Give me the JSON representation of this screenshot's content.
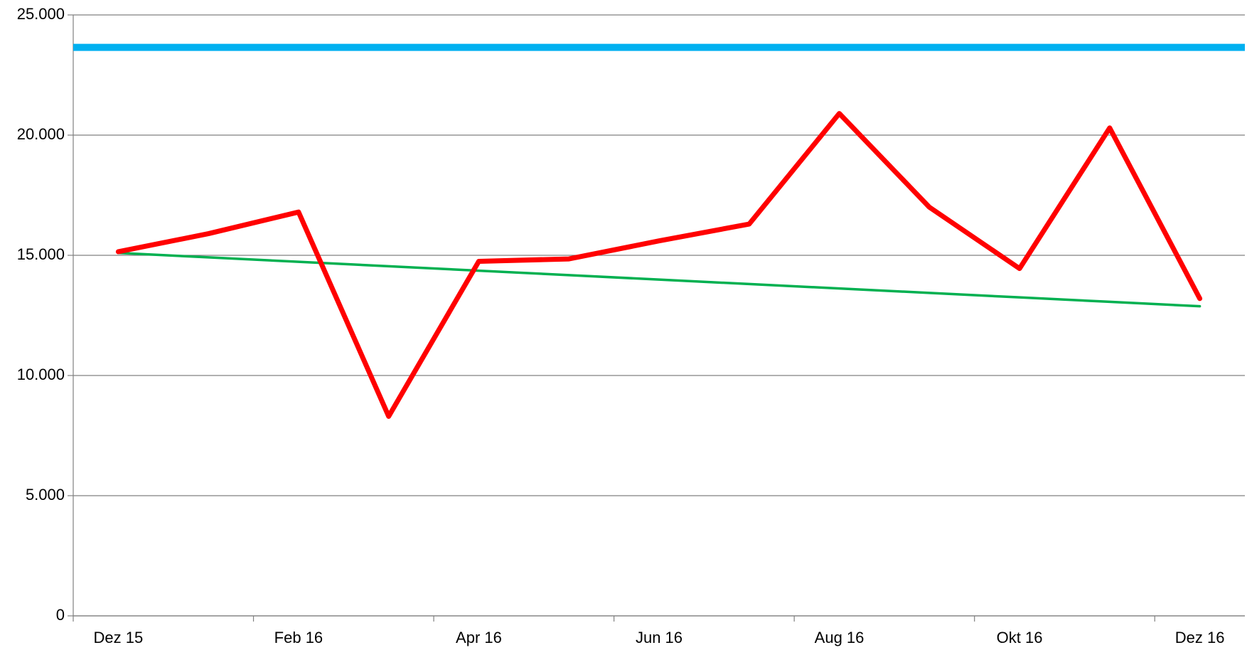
{
  "chart_data": {
    "type": "line",
    "categories": [
      "Dez 15",
      null,
      "Feb 16",
      null,
      "Apr 16",
      null,
      "Jun 16",
      null,
      "Aug 16",
      null,
      "Okt 16",
      null,
      "Dez 16"
    ],
    "series": [
      {
        "color": "#ff0000",
        "values": [
          15150,
          15900,
          16800,
          8300,
          14750,
          14850,
          15600,
          16300,
          20900,
          17000,
          14450,
          20300,
          13200
        ]
      },
      {
        "color": "#00b050",
        "values": [
          15100,
          14915,
          14730,
          14545,
          14360,
          14175,
          13990,
          13805,
          13620,
          13435,
          13250,
          13065,
          12880
        ]
      }
    ],
    "reference_line": {
      "value": 23650,
      "color": "#00b0f0"
    },
    "ylim": [
      0,
      25000
    ],
    "yticks": [
      0,
      {
        "value": 5000,
        "label": "5.000"
      },
      {
        "value": 10000,
        "label": "10.000"
      },
      {
        "value": 15000,
        "label": "15.000"
      },
      {
        "value": 20000,
        "label": "20.000"
      },
      {
        "value": 25000,
        "label": "25.000"
      }
    ],
    "grid": true
  }
}
